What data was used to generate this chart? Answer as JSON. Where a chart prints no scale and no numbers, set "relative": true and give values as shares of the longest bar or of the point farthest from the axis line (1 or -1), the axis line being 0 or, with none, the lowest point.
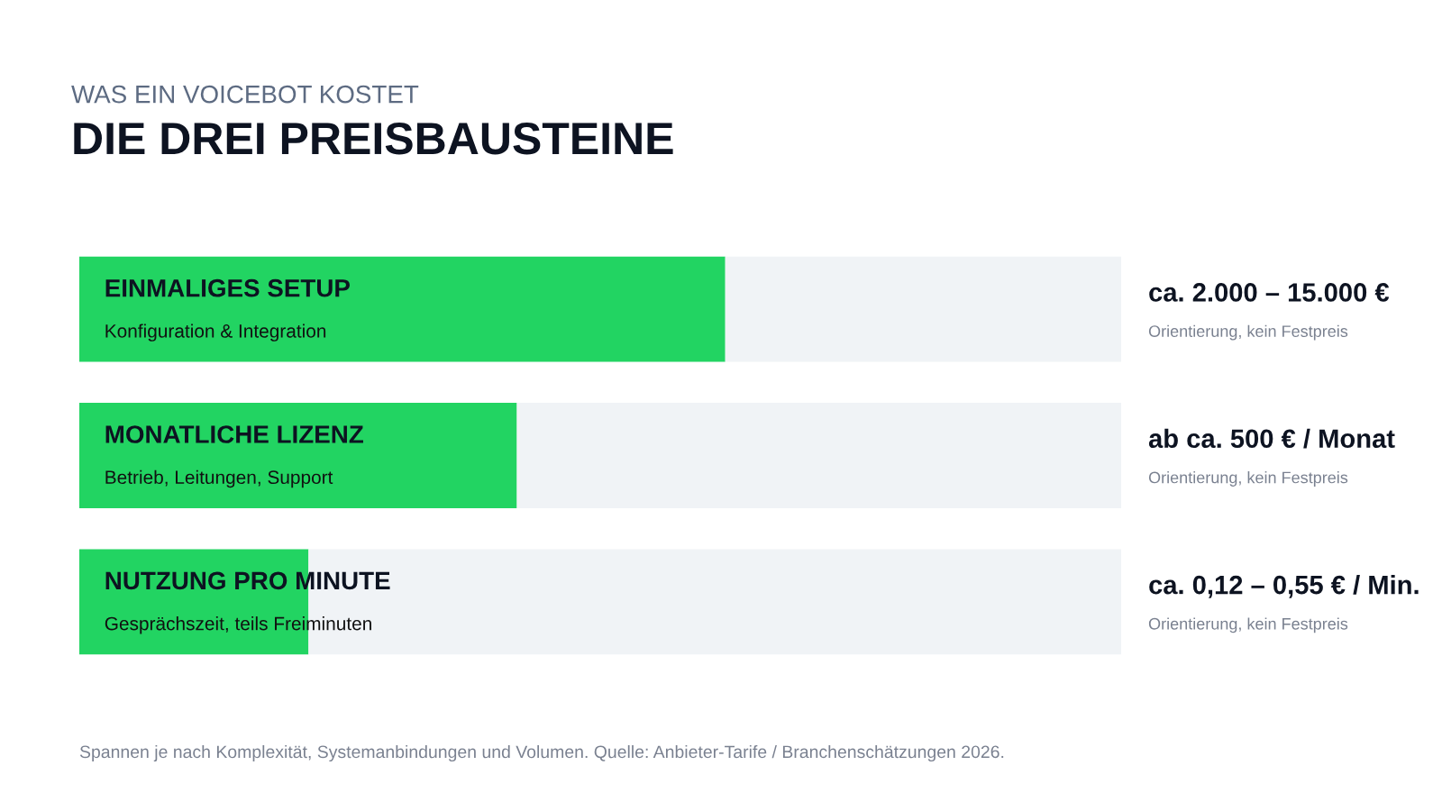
{
  "chart_data": {
    "type": "bar",
    "orientation": "horizontal",
    "stacked": true,
    "relative": true,
    "title": "DIE DREI PREISBAUSTEINE",
    "subtitle": "WAS EIN VOICEBOT KOSTET",
    "categories": [
      "EINMALIGES SETUP",
      "MONATLICHE LIZENZ",
      "NUTZUNG PRO MINUTE"
    ],
    "series": [
      {
        "color": "#22d462",
        "values": [
          0.62,
          0.42,
          0.22
        ]
      },
      {
        "color": "#f0f3f6",
        "values": [
          0.38,
          0.58,
          0.78
        ]
      }
    ],
    "annotations": [
      "Konfiguration & Integration",
      "Betrieb, Leitungen, Support",
      "Gesprächszeit, teils Freiminuten",
      "ca. 2.000 – 15.000 €",
      "Orientierung, kein Festpreis",
      "ab ca. 500 € / Monat",
      "Orientierung, kein Festpreis",
      "ca. 0,12 – 0,55 € / Min.",
      "Orientierung, kein Festpreis",
      "Spannen je nach Komplexität, Systemanbindungen und Volumen. Quelle: Anbieter-Tarife / Branchenschätzungen 2026."
    ],
    "legend": false
  }
}
